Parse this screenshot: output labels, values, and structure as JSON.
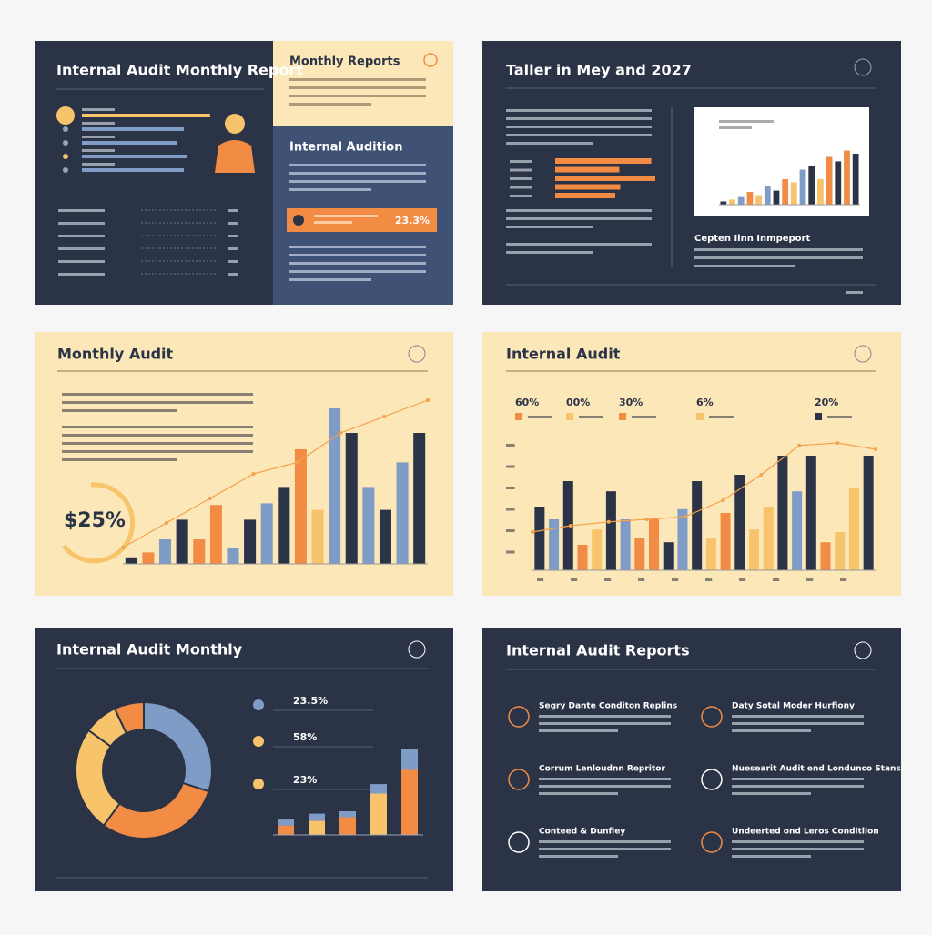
{
  "slides": [
    {
      "title": "Internal Audit Monthly Report",
      "side_title": "Monthly Reports",
      "side_heading": "Internal Audition",
      "highlight": "23.3%",
      "progress": {
        "values": [
          88,
          70,
          65,
          72,
          70
        ],
        "colors": [
          "#f7c46c",
          "#7f9cc6",
          "#7f9cc6",
          "#7f9cc6",
          "#7f9cc6"
        ],
        "ylim": [
          0,
          100
        ]
      }
    },
    {
      "title": "Taller in Mey and 2027",
      "caption": "Cepten Ilnn Inmpeport",
      "hbars": {
        "values": [
          96,
          64,
          100,
          65,
          60
        ],
        "color": "#f28c45",
        "ylim": [
          0,
          100
        ]
      },
      "chart": {
        "values": [
          5,
          8,
          12,
          20,
          15,
          30,
          22,
          40,
          35,
          55,
          60,
          40,
          75,
          68,
          85,
          80
        ],
        "colors": [
          "#2b3346",
          "#f7c46c",
          "#7f9cc6",
          "#f28c45",
          "#f7c46c",
          "#7f9cc6",
          "#2b3346",
          "#f28c45",
          "#f7c46c",
          "#7f9cc6",
          "#2b3346",
          "#f7c46c",
          "#f28c45",
          "#2b3346",
          "#f28c45",
          "#2b3346"
        ],
        "ylim": [
          0,
          100
        ]
      }
    },
    {
      "title": "Monthly Audit",
      "big_value": "$25%",
      "chart": {
        "values": [
          4,
          7,
          15,
          27,
          15,
          36,
          10,
          27,
          37,
          47,
          70,
          33,
          95,
          80,
          47,
          33,
          62,
          80
        ],
        "colors": [
          "#2b3346",
          "#f28c45",
          "#7f9cc6",
          "#2b3346",
          "#f28c45",
          "#f28c45",
          "#7f9cc6",
          "#2b3346",
          "#7f9cc6",
          "#2b3346",
          "#f28c45",
          "#f7c46c",
          "#7f9cc6",
          "#2b3346",
          "#7f9cc6",
          "#2b3346",
          "#7f9cc6",
          "#2b3346"
        ],
        "trend": [
          10,
          25,
          40,
          55,
          62,
          80,
          90,
          100
        ],
        "ylim": [
          0,
          100
        ]
      }
    },
    {
      "title": "Internal Audit",
      "legend": [
        {
          "label": "60%",
          "color": "#f28c45"
        },
        {
          "label": "00%",
          "color": "#f7c46c"
        },
        {
          "label": "30%",
          "color": "#f28c45"
        },
        {
          "label": "6%",
          "color": "#f7c46c"
        },
        {
          "label": "20%",
          "color": "#2b3346"
        }
      ],
      "chart": {
        "values": [
          50,
          40,
          70,
          20,
          32,
          62,
          40,
          25,
          40,
          22,
          48,
          70,
          25,
          45,
          75,
          32,
          50,
          90,
          62,
          90,
          22,
          30,
          65,
          90
        ],
        "colors": [
          "#2b3346",
          "#7f9cc6",
          "#2b3346",
          "#f28c45",
          "#f7c46c",
          "#2b3346",
          "#7f9cc6",
          "#f28c45",
          "#f28c45",
          "#2b3346",
          "#7f9cc6",
          "#2b3346",
          "#f7c46c",
          "#f28c45",
          "#2b3346",
          "#f7c46c",
          "#f7c46c",
          "#2b3346",
          "#7f9cc6",
          "#2b3346",
          "#f28c45",
          "#f7c46c",
          "#f7c46c",
          "#2b3346"
        ],
        "trend": [
          30,
          35,
          38,
          40,
          42,
          55,
          75,
          98,
          100,
          95
        ],
        "ylim": [
          0,
          100
        ]
      }
    },
    {
      "title": "Internal Audit Monthly",
      "stats": [
        "23.5%",
        "58%",
        "23%"
      ],
      "donut": {
        "values": [
          30,
          30,
          25,
          8,
          7
        ],
        "colors": [
          "#7f9cc6",
          "#f28c45",
          "#f7c46c",
          "#f7c46c",
          "#f28c45"
        ]
      },
      "stack": {
        "bottom": [
          8,
          12,
          15,
          35,
          55
        ],
        "top": [
          5,
          6,
          5,
          8,
          18
        ],
        "ylim": [
          0,
          100
        ]
      }
    },
    {
      "title": "Internal Audit Reports",
      "items": [
        "Segry Dante Conditon Replins",
        "Daty Sotal Moder Hurfiony",
        "Corrum Lenloudnn Repritor",
        "Nuesearit Audit end Londunco Stans",
        "Conteed & Dunfiey",
        "Undeerted ond Leros Conditlion"
      ]
    }
  ]
}
